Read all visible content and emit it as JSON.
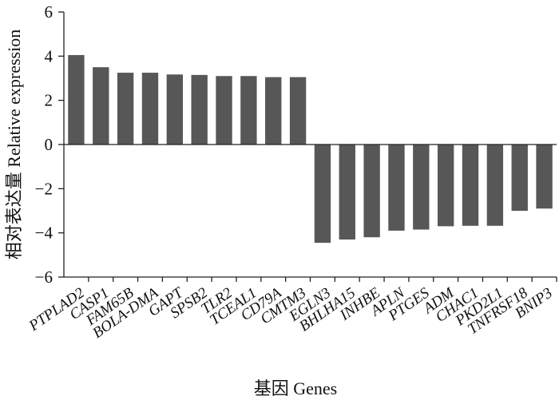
{
  "chart_data": {
    "type": "bar",
    "categories": [
      "PTPLAD2",
      "CASP1",
      "FAM65B",
      "BOLA-DMA",
      "GAPT",
      "SPSB2",
      "TLR2",
      "TCEAL1",
      "CD79A",
      "CMTM3",
      "EGLN3",
      "BHLHA15",
      "INHBE",
      "APLN",
      "PTGES",
      "ADM",
      "CHAC1",
      "PKD2L1",
      "TNFRSF18",
      "BNIP3"
    ],
    "values": [
      4.05,
      3.5,
      3.25,
      3.25,
      3.17,
      3.15,
      3.1,
      3.1,
      3.05,
      3.05,
      -4.45,
      -4.3,
      -4.2,
      -3.9,
      -3.85,
      -3.7,
      -3.68,
      -3.68,
      -3.0,
      -2.9
    ],
    "xlabel": "基因  Genes",
    "ylabel": "相对表达量  Relative expression",
    "ylim": [
      -6,
      6
    ],
    "yticks": [
      6,
      4,
      2,
      0,
      -2,
      -4,
      -6
    ],
    "grid": false,
    "bar_color": "#575757"
  }
}
